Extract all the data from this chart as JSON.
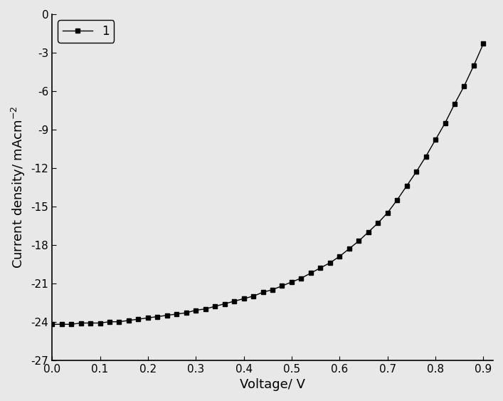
{
  "x": [
    0.0,
    0.02,
    0.04,
    0.06,
    0.08,
    0.1,
    0.12,
    0.14,
    0.16,
    0.18,
    0.2,
    0.22,
    0.24,
    0.26,
    0.28,
    0.3,
    0.32,
    0.34,
    0.36,
    0.38,
    0.4,
    0.42,
    0.44,
    0.46,
    0.48,
    0.5,
    0.52,
    0.54,
    0.56,
    0.58,
    0.6,
    0.62,
    0.64,
    0.66,
    0.68,
    0.7,
    0.72,
    0.74,
    0.76,
    0.78,
    0.8,
    0.82,
    0.84,
    0.86,
    0.88,
    0.9
  ],
  "y": [
    -24.2,
    -24.2,
    -24.2,
    -24.1,
    -24.1,
    -24.1,
    -24.0,
    -24.0,
    -23.9,
    -23.8,
    -23.7,
    -23.6,
    -23.5,
    -23.4,
    -23.3,
    -23.1,
    -23.0,
    -22.8,
    -22.6,
    -22.4,
    -22.2,
    -22.0,
    -21.7,
    -21.5,
    -21.2,
    -20.9,
    -20.6,
    -20.2,
    -19.8,
    -19.4,
    -18.9,
    -18.3,
    -17.7,
    -17.0,
    -16.3,
    -15.5,
    -14.5,
    -13.4,
    -12.3,
    -11.1,
    -9.8,
    -8.5,
    -7.0,
    -5.6,
    -4.0,
    -2.3
  ],
  "xlabel": "Voltage/ V",
  "ylabel": "Current density/ mAcm$^{-2}$",
  "legend_label": "1",
  "line_color": "#000000",
  "marker": "s",
  "marker_size": 4.5,
  "xlim": [
    0.0,
    0.92
  ],
  "ylim": [
    -27,
    0
  ],
  "xticks": [
    0.0,
    0.1,
    0.2,
    0.3,
    0.4,
    0.5,
    0.6,
    0.7,
    0.8,
    0.9
  ],
  "yticks": [
    0,
    -3,
    -6,
    -9,
    -12,
    -15,
    -18,
    -21,
    -24,
    -27
  ],
  "axis_fontsize": 13,
  "tick_fontsize": 11,
  "legend_fontsize": 12,
  "bg_color": "#e8e8e8"
}
